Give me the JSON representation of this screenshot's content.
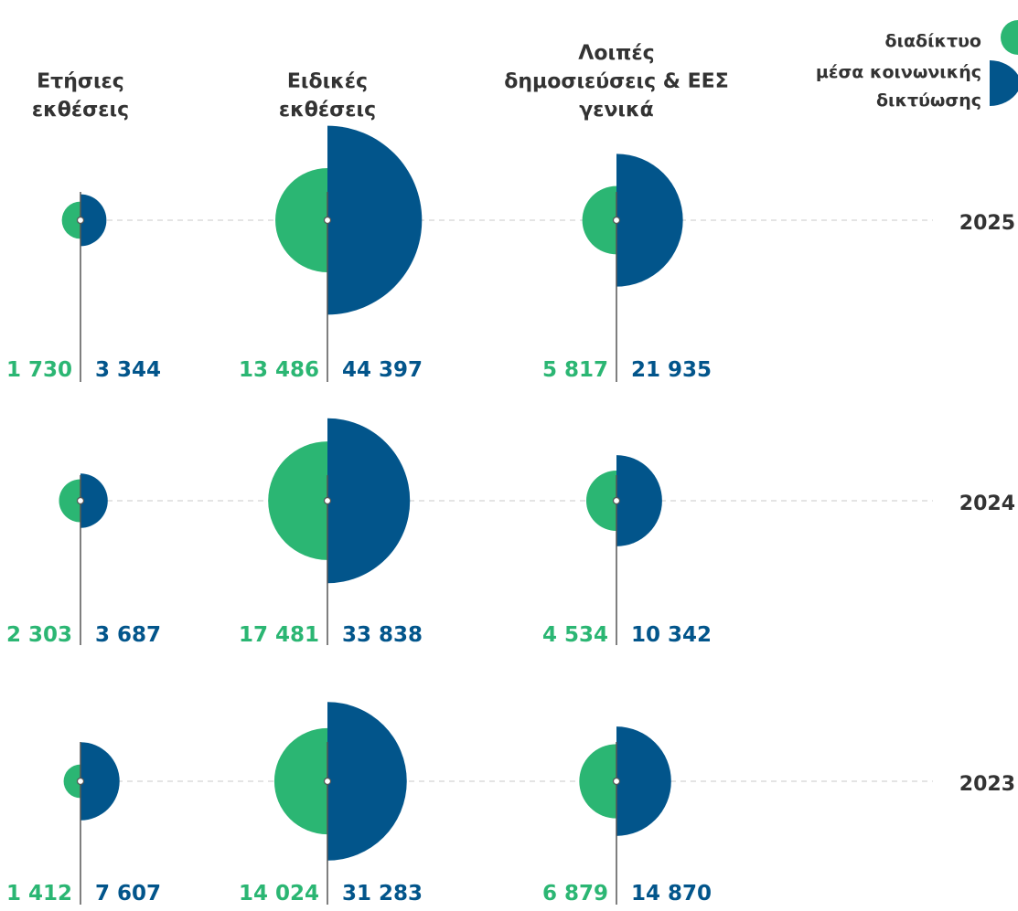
{
  "chart_data": {
    "type": "paired-semicircle-bubble",
    "title": "",
    "legend": {
      "placement": "top-right",
      "items": [
        {
          "key": "web",
          "label": "διαδίκτυο",
          "color": "#2bb673"
        },
        {
          "key": "social",
          "label": "μέσα κοινωνικής δικτύωσης",
          "label_lines": [
            "μέσα κοινωνικής",
            "δικτύωσης"
          ],
          "color": "#02558b"
        }
      ]
    },
    "columns": [
      {
        "label": "Ετήσιες εκθέσεις",
        "label_lines": [
          "Ετήσιες",
          "εκθέσεις"
        ]
      },
      {
        "label": "Ειδικές εκθέσεις",
        "label_lines": [
          "Ειδικές",
          "εκθέσεις"
        ]
      },
      {
        "label": "Λοιπές δημοσιεύσεις & ΕΕΣ γενικά",
        "label_lines": [
          "Λοιπές",
          "δημοσιεύσεις & ΕΕΣ",
          "γενικά"
        ]
      }
    ],
    "rows": [
      {
        "year": "2025",
        "cells": [
          {
            "web": 1730,
            "web_label": "1 730",
            "social": 3344,
            "social_label": "3 344"
          },
          {
            "web": 13486,
            "web_label": "13 486",
            "social": 44397,
            "social_label": "44 397"
          },
          {
            "web": 5817,
            "web_label": "5 817",
            "social": 21935,
            "social_label": "21 935"
          }
        ]
      },
      {
        "year": "2024",
        "cells": [
          {
            "web": 2303,
            "web_label": "2 303",
            "social": 3687,
            "social_label": "3 687"
          },
          {
            "web": 17481,
            "web_label": "17 481",
            "social": 33838,
            "social_label": "33 838"
          },
          {
            "web": 4534,
            "web_label": "4 534",
            "social": 10342,
            "social_label": "10 342"
          }
        ]
      },
      {
        "year": "2023",
        "cells": [
          {
            "web": 1412,
            "web_label": "1 412",
            "social": 7607,
            "social_label": "7 607"
          },
          {
            "web": 14024,
            "web_label": "14 024",
            "social": 31283,
            "social_label": "31 283"
          },
          {
            "web": 6879,
            "web_label": "6 879",
            "social": 14870,
            "social_label": "14 870"
          }
        ]
      }
    ]
  }
}
